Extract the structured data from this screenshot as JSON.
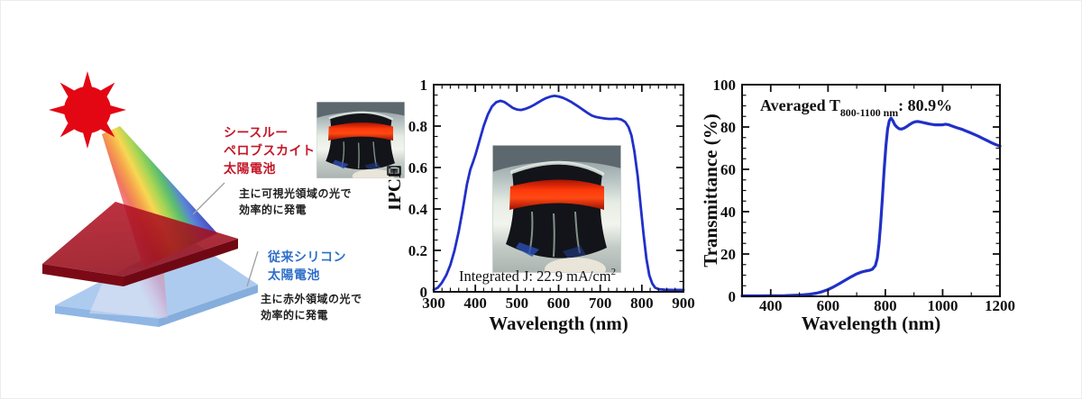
{
  "colors": {
    "curve_blue": "#2030c8",
    "sun_red": "#e20713",
    "label_red": "#c41828",
    "label_blue": "#2e6fc8",
    "perovskite_red": "#a30e1c",
    "silicon_blue": "#a6c6ec"
  },
  "diagram": {
    "icon": "sun-icon",
    "perovskite_label": "シースルー\nペロブスカイト\n太陽電池",
    "perovskite_desc": "主に可視光領域の光で\n効率的に発電",
    "silicon_label": "従来シリコン\n太陽電池",
    "silicon_desc": "主に赤外領域の光で\n効率的に発電"
  },
  "chart_data": [
    {
      "type": "line",
      "title": "",
      "xlabel": "Wavelength (nm)",
      "ylabel": "IPCE",
      "xlim": [
        300,
        900
      ],
      "ylim": [
        0,
        1
      ],
      "xticks": [
        300,
        400,
        500,
        600,
        700,
        800,
        900
      ],
      "yticks": [
        0,
        0.2,
        0.4,
        0.6,
        0.8,
        1
      ],
      "x_minor_step": 20,
      "y_minor_step": 0.05,
      "grid": false,
      "legend": false,
      "line_color": "#2030c8",
      "annotation": [
        {
          "text": "Integrated J: 22.9 mA/cm",
          "script": "normal"
        },
        {
          "text": "2",
          "script": "super"
        }
      ],
      "points": [
        [
          300,
          0.01
        ],
        [
          310,
          0.02
        ],
        [
          320,
          0.045
        ],
        [
          330,
          0.08
        ],
        [
          340,
          0.13
        ],
        [
          350,
          0.2
        ],
        [
          360,
          0.29
        ],
        [
          370,
          0.4
        ],
        [
          380,
          0.52
        ],
        [
          388,
          0.59
        ],
        [
          395,
          0.63
        ],
        [
          400,
          0.66
        ],
        [
          410,
          0.73
        ],
        [
          420,
          0.8
        ],
        [
          430,
          0.855
        ],
        [
          440,
          0.895
        ],
        [
          450,
          0.915
        ],
        [
          460,
          0.922
        ],
        [
          470,
          0.916
        ],
        [
          480,
          0.902
        ],
        [
          490,
          0.888
        ],
        [
          500,
          0.88
        ],
        [
          510,
          0.878
        ],
        [
          520,
          0.883
        ],
        [
          530,
          0.891
        ],
        [
          540,
          0.901
        ],
        [
          550,
          0.913
        ],
        [
          560,
          0.925
        ],
        [
          570,
          0.935
        ],
        [
          580,
          0.942
        ],
        [
          590,
          0.946
        ],
        [
          600,
          0.943
        ],
        [
          610,
          0.937
        ],
        [
          620,
          0.928
        ],
        [
          630,
          0.917
        ],
        [
          640,
          0.904
        ],
        [
          650,
          0.891
        ],
        [
          660,
          0.877
        ],
        [
          670,
          0.863
        ],
        [
          680,
          0.851
        ],
        [
          690,
          0.844
        ],
        [
          700,
          0.84
        ],
        [
          710,
          0.837
        ],
        [
          720,
          0.835
        ],
        [
          730,
          0.835
        ],
        [
          740,
          0.836
        ],
        [
          750,
          0.832
        ],
        [
          760,
          0.82
        ],
        [
          768,
          0.795
        ],
        [
          775,
          0.755
        ],
        [
          782,
          0.68
        ],
        [
          790,
          0.56
        ],
        [
          797,
          0.42
        ],
        [
          804,
          0.28
        ],
        [
          811,
          0.16
        ],
        [
          818,
          0.08
        ],
        [
          825,
          0.04
        ],
        [
          832,
          0.02
        ],
        [
          840,
          0.013
        ],
        [
          855,
          0.01
        ],
        [
          875,
          0.009
        ],
        [
          900,
          0.009
        ]
      ]
    },
    {
      "type": "line",
      "title": "",
      "xlabel": "Wavelength (nm)",
      "ylabel": "Transmittance (%)",
      "xlim": [
        300,
        1200
      ],
      "ylim": [
        0,
        100
      ],
      "xticks": [
        400,
        600,
        800,
        1000,
        1200
      ],
      "yticks": [
        0,
        20,
        40,
        60,
        80,
        100
      ],
      "x_minor_step": 100,
      "y_minor_step": 5,
      "grid": false,
      "legend": false,
      "line_color": "#2030c8",
      "annotation": [
        {
          "text": "Averaged T",
          "script": "normal"
        },
        {
          "text": "800-1100 nm",
          "script": "sub"
        },
        {
          "text": ": 80.9%",
          "script": "normal"
        }
      ],
      "points": [
        [
          300,
          0.2
        ],
        [
          350,
          0.2
        ],
        [
          400,
          0.25
        ],
        [
          450,
          0.35
        ],
        [
          500,
          0.6
        ],
        [
          530,
          0.9
        ],
        [
          560,
          1.5
        ],
        [
          580,
          2.2
        ],
        [
          600,
          3.2
        ],
        [
          620,
          4.5
        ],
        [
          640,
          6.0
        ],
        [
          660,
          7.6
        ],
        [
          680,
          9.2
        ],
        [
          700,
          10.6
        ],
        [
          715,
          11.4
        ],
        [
          730,
          11.9
        ],
        [
          745,
          12.3
        ],
        [
          755,
          12.8
        ],
        [
          765,
          14.5
        ],
        [
          772,
          18
        ],
        [
          778,
          25
        ],
        [
          784,
          35
        ],
        [
          790,
          47
        ],
        [
          796,
          60
        ],
        [
          802,
          71
        ],
        [
          808,
          79
        ],
        [
          814,
          83
        ],
        [
          820,
          84.2
        ],
        [
          826,
          83
        ],
        [
          833,
          81
        ],
        [
          840,
          80
        ],
        [
          848,
          79.2
        ],
        [
          856,
          79.0
        ],
        [
          865,
          79.4
        ],
        [
          875,
          80.2
        ],
        [
          885,
          81.2
        ],
        [
          895,
          82.0
        ],
        [
          905,
          82.5
        ],
        [
          915,
          82.6
        ],
        [
          925,
          82.3
        ],
        [
          935,
          82.0
        ],
        [
          945,
          81.7
        ],
        [
          955,
          81.4
        ],
        [
          965,
          81.2
        ],
        [
          975,
          81.0
        ],
        [
          985,
          81.0
        ],
        [
          1000,
          81.0
        ],
        [
          1010,
          81.3
        ],
        [
          1020,
          81.1
        ],
        [
          1030,
          80.6
        ],
        [
          1040,
          80.1
        ],
        [
          1050,
          79.6
        ],
        [
          1065,
          79.0
        ],
        [
          1080,
          78.2
        ],
        [
          1095,
          77.4
        ],
        [
          1110,
          76.5
        ],
        [
          1125,
          75.6
        ],
        [
          1140,
          74.6
        ],
        [
          1155,
          73.6
        ],
        [
          1170,
          72.6
        ],
        [
          1185,
          71.7
        ],
        [
          1200,
          71.0
        ]
      ]
    }
  ]
}
